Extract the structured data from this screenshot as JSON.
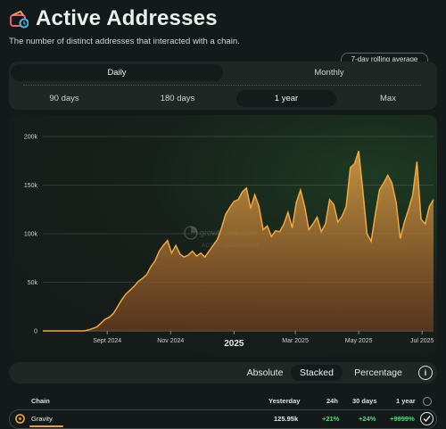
{
  "header": {
    "title": "Active Addresses",
    "subtitle": "The number of distinct addresses that interacted with a chain."
  },
  "controls": {
    "rolling_badge": "7-day rolling average",
    "granularity": [
      {
        "label": "Daily",
        "active": true
      },
      {
        "label": "Monthly",
        "active": false
      }
    ],
    "ranges": [
      {
        "label": "90 days",
        "active": false
      },
      {
        "label": "180 days",
        "active": false
      },
      {
        "label": "1 year",
        "active": true
      },
      {
        "label": "Max",
        "active": false
      }
    ]
  },
  "chart_data": {
    "type": "area",
    "title": "",
    "xlabel": "",
    "ylabel": "",
    "ylim": [
      0,
      200000
    ],
    "y_ticks": [
      "0",
      "50k",
      "100k",
      "150k",
      "200k"
    ],
    "x_ticks": [
      "Sept 2024",
      "Nov 2024",
      "2025",
      "Mar 2025",
      "May 2025",
      "Jul 2025"
    ],
    "grid": true,
    "color": "#f2a93b",
    "watermark": "growthepie.com",
    "watermark_sub": "ACTIVE ADDRESSES",
    "series": [
      {
        "x": [
          "2024-07-01",
          "2024-07-21",
          "2024-08-10",
          "2024-08-14",
          "2024-08-18",
          "2024-08-22",
          "2024-08-26",
          "2024-08-30",
          "2024-09-03",
          "2024-09-07",
          "2024-09-11",
          "2024-09-15",
          "2024-09-19",
          "2024-09-23",
          "2024-09-27",
          "2024-10-01",
          "2024-10-05",
          "2024-10-09",
          "2024-10-13",
          "2024-10-17",
          "2024-10-21",
          "2024-10-25",
          "2024-10-29",
          "2024-11-02",
          "2024-11-06",
          "2024-11-10",
          "2024-11-14",
          "2024-11-18",
          "2024-11-22",
          "2024-11-26",
          "2024-11-30",
          "2024-12-04",
          "2024-12-08",
          "2024-12-12",
          "2024-12-16",
          "2024-12-20",
          "2024-12-24",
          "2024-12-28",
          "2025-01-01",
          "2025-01-05",
          "2025-01-09",
          "2025-01-13",
          "2025-01-17",
          "2025-01-21",
          "2025-01-25",
          "2025-01-29",
          "2025-02-02",
          "2025-02-06",
          "2025-02-10",
          "2025-02-14",
          "2025-02-18",
          "2025-02-22",
          "2025-02-26",
          "2025-03-02",
          "2025-03-06",
          "2025-03-10",
          "2025-03-14",
          "2025-03-18",
          "2025-03-22",
          "2025-03-26",
          "2025-03-30",
          "2025-04-03",
          "2025-04-07",
          "2025-04-11",
          "2025-04-15",
          "2025-04-19",
          "2025-04-23",
          "2025-04-27",
          "2025-05-01",
          "2025-05-05",
          "2025-05-09",
          "2025-05-13",
          "2025-05-17",
          "2025-05-21",
          "2025-05-25",
          "2025-05-29",
          "2025-06-02",
          "2025-06-06",
          "2025-06-10",
          "2025-06-14",
          "2025-06-18",
          "2025-06-22",
          "2025-06-26",
          "2025-06-30",
          "2025-07-04",
          "2025-07-08",
          "2025-07-12"
        ],
        "y": [
          0,
          0,
          0,
          1000,
          2500,
          4000,
          8000,
          12000,
          14000,
          18000,
          25000,
          32000,
          38000,
          42000,
          46000,
          51000,
          54000,
          58000,
          66000,
          72000,
          82000,
          88000,
          93000,
          80000,
          88000,
          79000,
          76000,
          78000,
          82000,
          77000,
          80000,
          76000,
          82000,
          88000,
          94000,
          106000,
          120000,
          127000,
          133000,
          135000,
          143000,
          147000,
          126000,
          140000,
          128000,
          104000,
          108000,
          97000,
          103000,
          102000,
          110000,
          122000,
          106000,
          132000,
          145000,
          128000,
          104000,
          110000,
          117000,
          102000,
          110000,
          135000,
          130000,
          112000,
          118000,
          128000,
          168000,
          172000,
          185000,
          144000,
          100000,
          92000,
          120000,
          145000,
          152000,
          160000,
          152000,
          132000,
          95000,
          112000,
          125000,
          140000,
          174000,
          115000,
          110000,
          128000,
          135000
        ]
      }
    ]
  },
  "view_toggle": {
    "options": [
      {
        "label": "Absolute",
        "active": false
      },
      {
        "label": "Stacked",
        "active": true
      },
      {
        "label": "Percentage",
        "active": false
      }
    ],
    "info_icon": "i"
  },
  "table": {
    "headers": {
      "chain": "Chain",
      "yesterday": "Yesterday",
      "h24": "24h",
      "d30": "30 days",
      "y1": "1 year"
    },
    "rows": [
      {
        "chain": "Gravity",
        "yesterday": "125.95k",
        "h24": "+21%",
        "d30": "+24%",
        "y1": "+9999%",
        "selected": true
      }
    ],
    "positive_color": "#4ade80",
    "chain_color": "#e8a13b"
  }
}
